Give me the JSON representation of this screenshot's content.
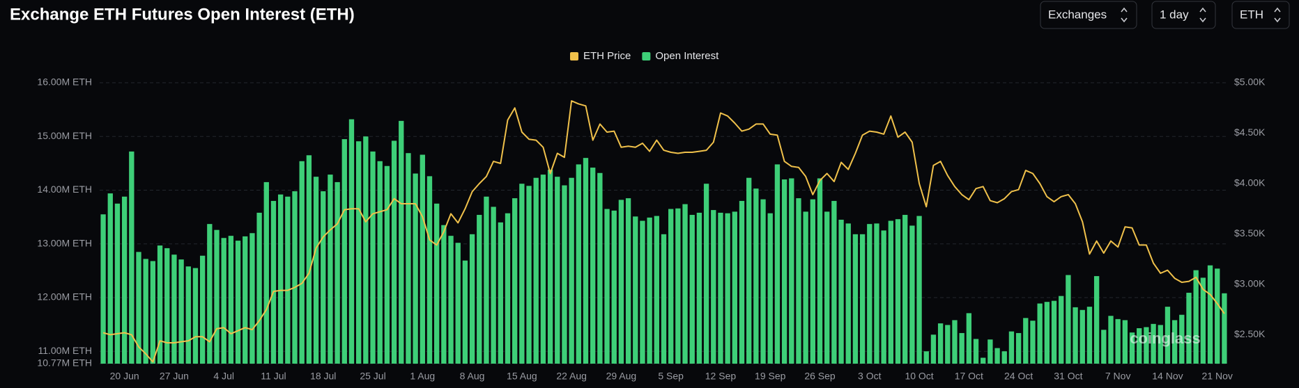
{
  "header": {
    "title": "Exchange ETH Futures Open Interest (ETH)",
    "controls": [
      "Exchanges",
      "1 day",
      "ETH"
    ]
  },
  "watermark": "coinglass",
  "chart_data": {
    "type": "combo",
    "categories": [
      null,
      null,
      null,
      "20 Jun",
      null,
      null,
      null,
      null,
      null,
      null,
      "27 Jun",
      null,
      null,
      null,
      null,
      null,
      null,
      "4 Jul",
      null,
      null,
      null,
      null,
      null,
      null,
      "11 Jul",
      null,
      null,
      null,
      null,
      null,
      null,
      "18 Jul",
      null,
      null,
      null,
      null,
      null,
      null,
      "25 Jul",
      null,
      null,
      null,
      null,
      null,
      null,
      "1 Aug",
      null,
      null,
      null,
      null,
      null,
      null,
      "8 Aug",
      null,
      null,
      null,
      null,
      null,
      null,
      "15 Aug",
      null,
      null,
      null,
      null,
      null,
      null,
      "22 Aug",
      null,
      null,
      null,
      null,
      null,
      null,
      "29 Aug",
      null,
      null,
      null,
      null,
      null,
      null,
      "5 Sep",
      null,
      null,
      null,
      null,
      null,
      null,
      "12 Sep",
      null,
      null,
      null,
      null,
      null,
      null,
      "19 Sep",
      null,
      null,
      null,
      null,
      null,
      null,
      "26 Sep",
      null,
      null,
      null,
      null,
      null,
      null,
      "3 Oct",
      null,
      null,
      null,
      null,
      null,
      null,
      "10 Oct",
      null,
      null,
      null,
      null,
      null,
      null,
      "17 Oct",
      null,
      null,
      null,
      null,
      null,
      null,
      "24 Oct",
      null,
      null,
      null,
      null,
      null,
      null,
      "31 Oct",
      null,
      null,
      null,
      null,
      null,
      null,
      "7 Nov",
      null,
      null,
      null,
      null,
      null,
      null,
      "14 Nov",
      null,
      null,
      null,
      null,
      null,
      null,
      "21 Nov",
      null
    ],
    "series": [
      {
        "name": "ETH Price",
        "type": "line",
        "axis": "y2",
        "color": "#f0c14b",
        "values": [
          2.52,
          2.5,
          2.51,
          2.52,
          2.5,
          2.38,
          2.31,
          2.23,
          2.44,
          2.42,
          2.42,
          2.43,
          2.44,
          2.48,
          2.48,
          2.43,
          2.56,
          2.57,
          2.51,
          2.54,
          2.57,
          2.55,
          2.64,
          2.75,
          2.93,
          2.94,
          2.94,
          2.97,
          3.01,
          3.11,
          3.36,
          3.47,
          3.54,
          3.6,
          3.74,
          3.75,
          3.75,
          3.62,
          3.7,
          3.72,
          3.74,
          3.85,
          3.8,
          3.8,
          3.8,
          3.67,
          3.44,
          3.39,
          3.52,
          3.7,
          3.61,
          3.75,
          3.92,
          4.0,
          4.07,
          4.22,
          4.2,
          4.63,
          4.75,
          4.51,
          4.44,
          4.43,
          4.36,
          4.1,
          4.3,
          4.26,
          4.82,
          4.79,
          4.77,
          4.43,
          4.59,
          4.51,
          4.52,
          4.36,
          4.37,
          4.36,
          4.4,
          4.32,
          4.43,
          4.33,
          4.31,
          4.3,
          4.31,
          4.31,
          4.32,
          4.33,
          4.41,
          4.7,
          4.67,
          4.6,
          4.52,
          4.54,
          4.59,
          4.59,
          4.49,
          4.48,
          4.22,
          4.17,
          4.16,
          4.07,
          3.89,
          4.03,
          4.1,
          4.02,
          4.21,
          4.14,
          4.3,
          4.48,
          4.52,
          4.51,
          4.49,
          4.67,
          4.46,
          4.51,
          4.41,
          4.0,
          3.77,
          4.18,
          4.22,
          4.08,
          3.97,
          3.89,
          3.84,
          3.95,
          3.97,
          3.83,
          3.81,
          3.85,
          3.92,
          3.94,
          4.13,
          4.1,
          4.0,
          3.87,
          3.82,
          3.87,
          3.89,
          3.8,
          3.62,
          3.3,
          3.43,
          3.31,
          3.43,
          3.37,
          3.57,
          3.56,
          3.39,
          3.39,
          3.21,
          3.11,
          3.14,
          3.06,
          3.02,
          3.03,
          3.07,
          2.95,
          2.9,
          2.81,
          2.71
        ]
      },
      {
        "name": "Open Interest",
        "type": "bar",
        "axis": "y",
        "color": "#3ecf78",
        "values": [
          13.55,
          13.94,
          13.75,
          13.88,
          14.72,
          12.85,
          12.72,
          12.68,
          12.97,
          12.92,
          12.8,
          12.71,
          12.58,
          12.55,
          12.78,
          13.37,
          13.26,
          13.11,
          13.15,
          13.06,
          13.14,
          13.2,
          13.58,
          14.15,
          13.8,
          13.92,
          13.88,
          13.98,
          14.54,
          14.65,
          14.25,
          13.98,
          14.29,
          14.15,
          14.95,
          15.32,
          14.91,
          15.0,
          14.72,
          14.54,
          14.45,
          14.92,
          15.29,
          14.69,
          14.31,
          14.66,
          14.26,
          13.75,
          13.35,
          13.15,
          13.02,
          12.69,
          13.18,
          13.54,
          13.88,
          13.69,
          13.4,
          13.57,
          13.85,
          14.12,
          14.08,
          14.23,
          14.29,
          14.38,
          14.25,
          14.09,
          14.23,
          14.48,
          14.6,
          14.42,
          14.32,
          13.65,
          13.62,
          13.82,
          13.85,
          13.51,
          13.43,
          13.49,
          13.52,
          13.18,
          13.65,
          13.66,
          13.74,
          13.54,
          13.58,
          14.12,
          13.63,
          13.58,
          13.57,
          13.6,
          13.8,
          14.23,
          14.03,
          13.83,
          13.57,
          14.48,
          14.2,
          14.22,
          13.85,
          13.6,
          13.83,
          14.22,
          13.6,
          13.8,
          13.45,
          13.38,
          13.18,
          13.18,
          13.37,
          13.38,
          13.25,
          13.43,
          13.46,
          13.54,
          13.34,
          13.52,
          11.0,
          11.31,
          11.52,
          11.49,
          11.58,
          11.34,
          11.71,
          11.23,
          10.88,
          11.22,
          11.06,
          11.0,
          11.37,
          11.34,
          11.62,
          11.57,
          11.89,
          11.92,
          11.94,
          12.03,
          12.42,
          11.82,
          11.77,
          11.83,
          12.4,
          11.4,
          11.66,
          11.6,
          11.58,
          11.35,
          11.43,
          11.45,
          11.51,
          11.49,
          11.83,
          11.58,
          11.68,
          12.09,
          12.51,
          12.37,
          12.6,
          12.54,
          12.08
        ]
      }
    ],
    "ylim": [
      10.77,
      16
    ],
    "yticks": [
      {
        "value": 10.77,
        "label": "10.77M ETH"
      },
      {
        "value": 11,
        "label": "11.00M ETH"
      },
      {
        "value": 12,
        "label": "12.00M ETH"
      },
      {
        "value": 13,
        "label": "13.00M ETH"
      },
      {
        "value": 14,
        "label": "14.00M ETH"
      },
      {
        "value": 15,
        "label": "15.00M ETH"
      },
      {
        "value": 16,
        "label": "16.00M ETH"
      }
    ],
    "y2lim": [
      2.213,
      5
    ],
    "y2ticks": [
      {
        "value": 2.5,
        "label": "$2.50K"
      },
      {
        "value": 3,
        "label": "$3.00K"
      },
      {
        "value": 3.5,
        "label": "$3.50K"
      },
      {
        "value": 4,
        "label": "$4.00K"
      },
      {
        "value": 4.5,
        "label": "$4.50K"
      },
      {
        "value": 5,
        "label": "$5.00K"
      }
    ],
    "grid": true,
    "legend": "top"
  }
}
